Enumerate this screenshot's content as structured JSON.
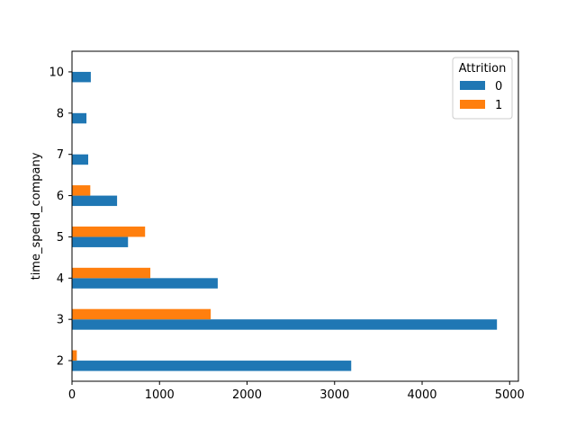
{
  "chart_data": {
    "type": "bar",
    "orientation": "horizontal",
    "categories": [
      "2",
      "3",
      "4",
      "5",
      "6",
      "7",
      "8",
      "10"
    ],
    "series": [
      {
        "name": "0",
        "color": "#1f77b4",
        "values": [
          3190,
          4855,
          1665,
          640,
          515,
          185,
          165,
          215
        ]
      },
      {
        "name": "1",
        "color": "#ff7f0e",
        "values": [
          55,
          1585,
          895,
          835,
          209,
          0,
          0,
          0
        ]
      }
    ],
    "title": "",
    "xlabel": "",
    "ylabel": "time_spend_company",
    "xlim": [
      0,
      5100
    ],
    "xticks": [
      0,
      1000,
      2000,
      3000,
      4000,
      5000
    ],
    "legend": {
      "title": "Attrition",
      "placement": "top-right"
    },
    "grid": false
  }
}
